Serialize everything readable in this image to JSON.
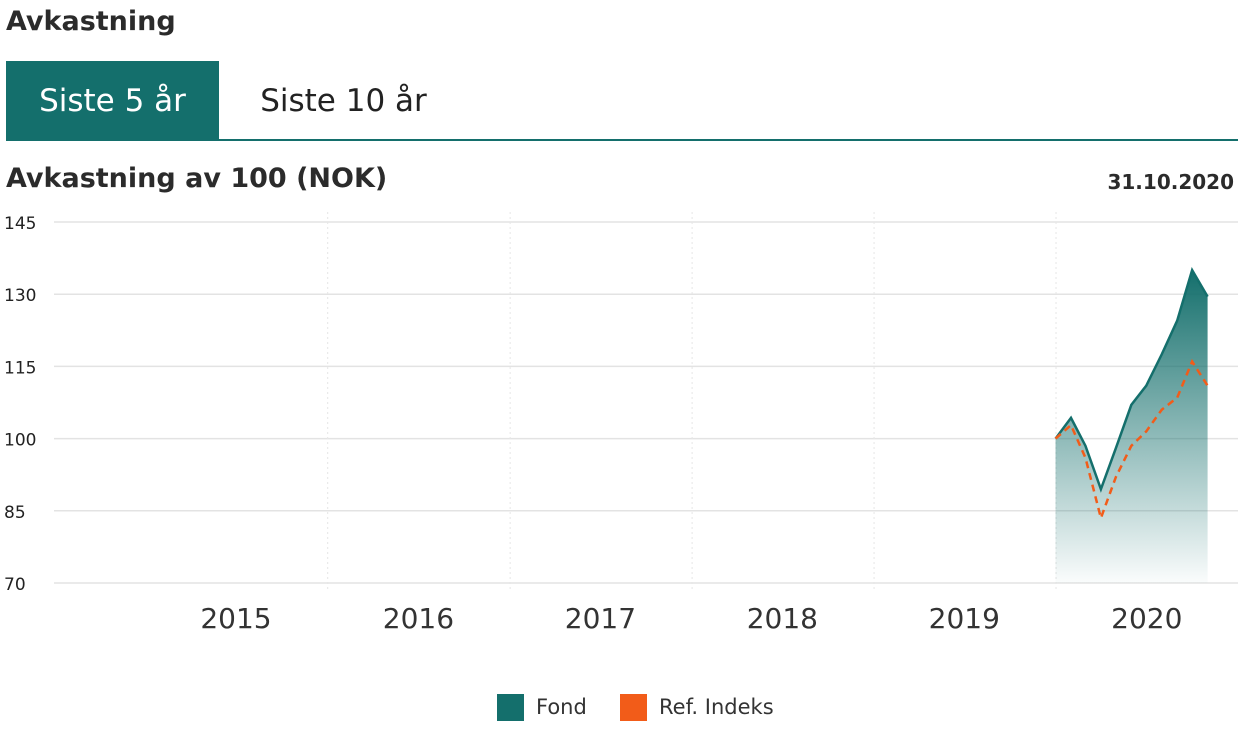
{
  "header": {
    "title": "Avkastning"
  },
  "tabs": [
    {
      "label": "Siste 5 år",
      "active": true
    },
    {
      "label": "Siste 10 år",
      "active": false
    }
  ],
  "chart_header": {
    "title": "Avkastning av 100 (NOK)",
    "date": "31.10.2020"
  },
  "colors": {
    "fond": "#146f6c",
    "ref": "#f25c19",
    "grid": "#e3e3e3",
    "tab_active": "#146f6c"
  },
  "chart_data": {
    "type": "area",
    "title": "Avkastning av 100 (NOK)",
    "x_ticks": [
      "2015",
      "2016",
      "2017",
      "2018",
      "2019",
      "2020"
    ],
    "y_ticks": [
      145,
      130,
      115,
      100,
      85,
      70
    ],
    "ylim": [
      70,
      145
    ],
    "xlim": [
      "2014-07-01",
      "2020-12-31"
    ],
    "grid": true,
    "legend": "bottom-center",
    "series": [
      {
        "name": "Fond",
        "style": "area",
        "x": [
          "2019-12-31",
          "2020-01-31",
          "2020-02-29",
          "2020-03-31",
          "2020-04-30",
          "2020-05-31",
          "2020-06-30",
          "2020-07-31",
          "2020-08-31",
          "2020-09-30",
          "2020-10-31"
        ],
        "values": [
          100,
          104.3,
          98.5,
          89.5,
          98,
          107,
          111,
          117.5,
          124.5,
          135,
          129.5
        ]
      },
      {
        "name": "Ref. Indeks",
        "style": "dashed-line",
        "x": [
          "2019-12-31",
          "2020-01-31",
          "2020-02-29",
          "2020-03-31",
          "2020-04-30",
          "2020-05-31",
          "2020-06-30",
          "2020-07-31",
          "2020-08-31",
          "2020-09-30",
          "2020-10-31"
        ],
        "values": [
          100,
          102.8,
          96,
          83.5,
          92,
          98.5,
          101.5,
          106,
          108.5,
          116,
          111
        ]
      }
    ]
  }
}
